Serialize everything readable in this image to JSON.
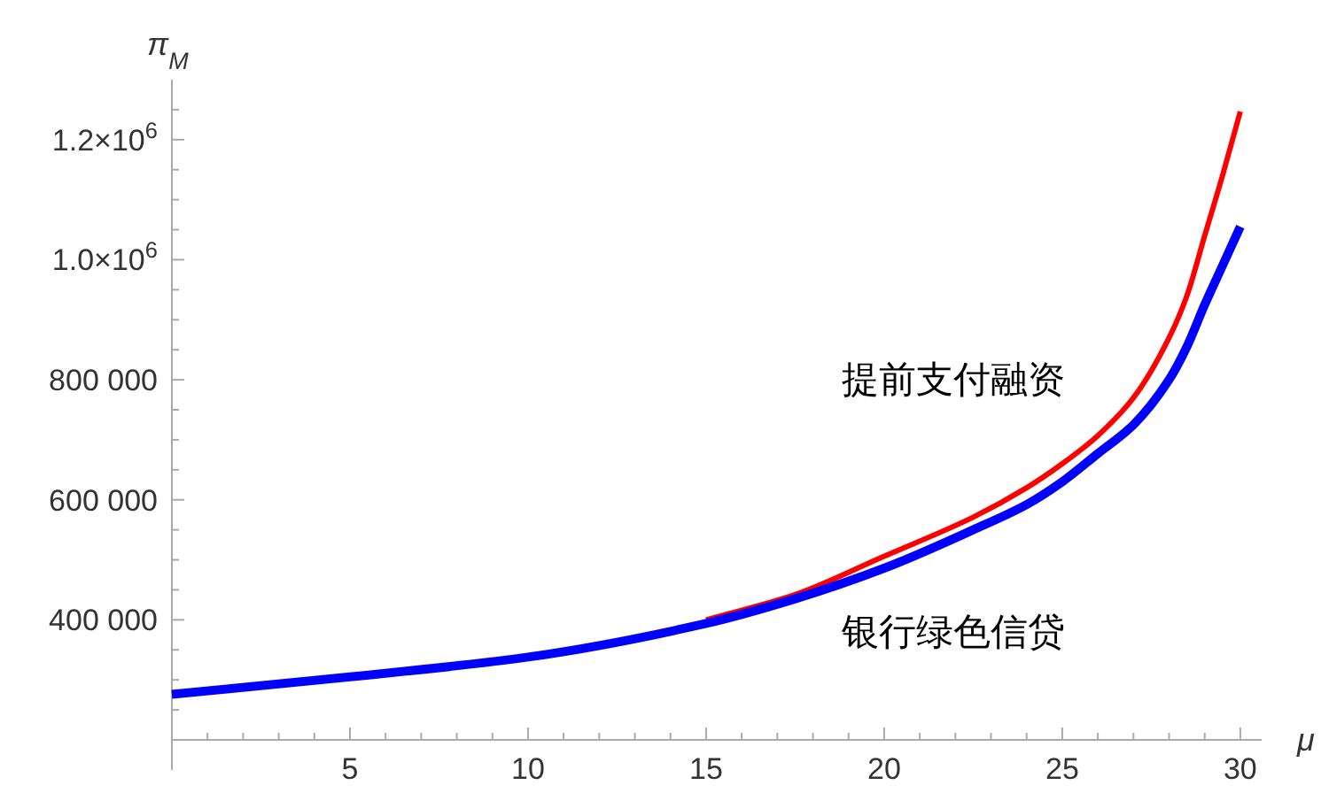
{
  "chart_data": {
    "type": "line",
    "xlabel": "μ",
    "ylabel": "π$_{M}$",
    "xlim": [
      0,
      30.6
    ],
    "ylim": [
      200000,
      1300000
    ],
    "xticks": [
      {
        "value": 1,
        "label": null
      },
      {
        "value": 2,
        "label": null
      },
      {
        "value": 3,
        "label": null
      },
      {
        "value": 4,
        "label": null
      },
      5,
      {
        "value": 6,
        "label": null
      },
      {
        "value": 7,
        "label": null
      },
      {
        "value": 8,
        "label": null
      },
      {
        "value": 9,
        "label": null
      },
      10,
      {
        "value": 11,
        "label": null
      },
      {
        "value": 12,
        "label": null
      },
      {
        "value": 13,
        "label": null
      },
      {
        "value": 14,
        "label": null
      },
      15,
      {
        "value": 16,
        "label": null
      },
      {
        "value": 17,
        "label": null
      },
      {
        "value": 18,
        "label": null
      },
      {
        "value": 19,
        "label": null
      },
      20,
      {
        "value": 21,
        "label": null
      },
      {
        "value": 22,
        "label": null
      },
      {
        "value": 23,
        "label": null
      },
      {
        "value": 24,
        "label": null
      },
      25,
      {
        "value": 26,
        "label": null
      },
      {
        "value": 27,
        "label": null
      },
      {
        "value": 28,
        "label": null
      },
      {
        "value": 29,
        "label": null
      },
      30
    ],
    "yticks": [
      {
        "value": 250000,
        "label": null
      },
      {
        "value": 300000,
        "label": null
      },
      {
        "value": 350000,
        "label": null
      },
      {
        "value": 400000,
        "label": "400 000"
      },
      {
        "value": 450000,
        "label": null
      },
      {
        "value": 500000,
        "label": null
      },
      {
        "value": 550000,
        "label": null
      },
      {
        "value": 600000,
        "label": "600 000"
      },
      {
        "value": 650000,
        "label": null
      },
      {
        "value": 700000,
        "label": null
      },
      {
        "value": 750000,
        "label": null
      },
      {
        "value": 800000,
        "label": "800 000"
      },
      {
        "value": 850000,
        "label": null
      },
      {
        "value": 900000,
        "label": null
      },
      {
        "value": 950000,
        "label": null
      },
      {
        "value": 1000000,
        "label": "1.0×10$^{6}$"
      },
      {
        "value": 1050000,
        "label": null
      },
      {
        "value": 1100000,
        "label": null
      },
      {
        "value": 1150000,
        "label": null
      },
      {
        "value": 1200000,
        "label": "1.2×10$^{6}$"
      },
      {
        "value": 1250000,
        "label": null
      }
    ],
    "x": [
      0,
      5,
      10,
      15,
      17.5,
      20,
      22.5,
      24,
      25,
      26,
      27,
      28,
      28.5,
      29,
      29.5,
      30
    ],
    "series": [
      {
        "name": "提前支付融资",
        "color": "#ff0000",
        "values": [
          null,
          null,
          null,
          400000,
          442000,
          506000,
          571000,
          620000,
          660000,
          707000,
          770000,
          870000,
          940000,
          1040000,
          1140000,
          1247000
        ]
      },
      {
        "name": "银行绿色信贷",
        "color": "#0000ff",
        "values": [
          276000,
          305000,
          338000,
          394000,
          435000,
          486000,
          550000,
          592000,
          630000,
          677000,
          725000,
          800000,
          855000,
          925000,
          990000,
          1055000
        ]
      }
    ]
  }
}
